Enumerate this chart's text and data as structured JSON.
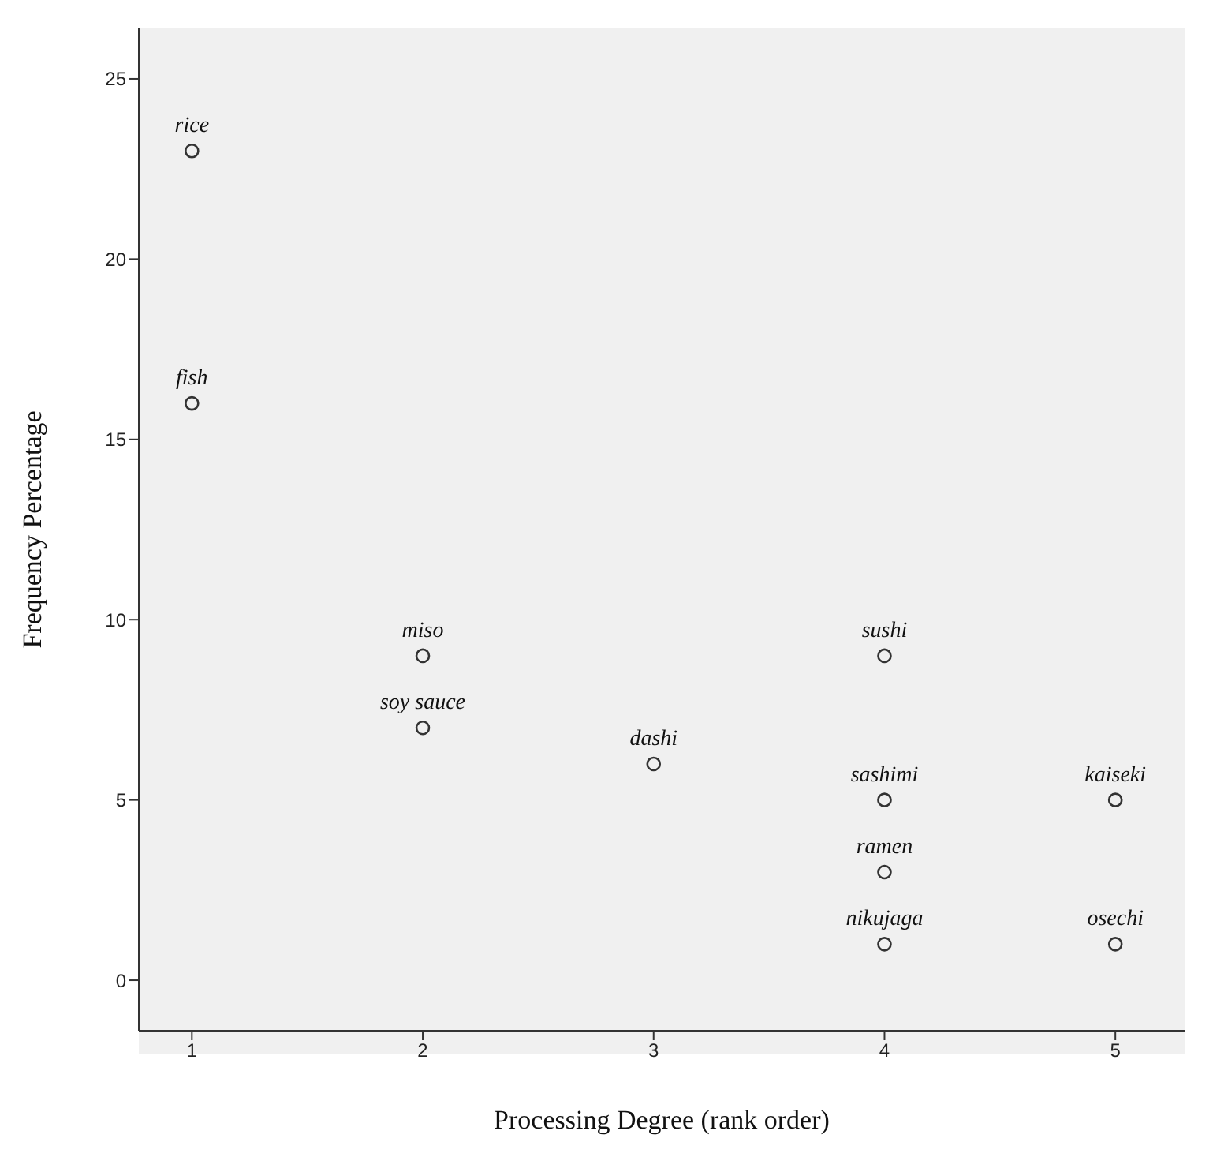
{
  "chart_data": {
    "type": "scatter",
    "xlabel": "Processing  Degree (rank order)",
    "ylabel": "Frequency Percentage",
    "x": [
      1,
      1,
      2,
      2,
      3,
      4,
      4,
      4,
      4,
      5,
      5
    ],
    "series": [
      {
        "color": "#333333",
        "values": [
          23,
          16,
          9,
          7,
          6,
          9,
          5,
          3,
          1,
          5,
          1
        ]
      }
    ],
    "xlim": [
      0.77,
      5.3
    ],
    "xticks": [
      1,
      2,
      3,
      4,
      5
    ],
    "ylim": [
      -1.4,
      26.4
    ],
    "yticks": [
      0,
      5,
      10,
      15,
      20,
      25
    ],
    "grid": false,
    "legend": false,
    "marker": "circle",
    "annotations": [
      {
        "text": "rice",
        "x": 1,
        "y": 23
      },
      {
        "text": "fish",
        "x": 1,
        "y": 16
      },
      {
        "text": "miso",
        "x": 2,
        "y": 9
      },
      {
        "text": "soy sauce",
        "x": 2,
        "y": 7
      },
      {
        "text": "dashi",
        "x": 3,
        "y": 6
      },
      {
        "text": "sushi",
        "x": 4,
        "y": 9
      },
      {
        "text": "sashimi",
        "x": 4,
        "y": 5
      },
      {
        "text": "ramen",
        "x": 4,
        "y": 3
      },
      {
        "text": "nikujaga",
        "x": 4,
        "y": 1
      },
      {
        "text": "kaiseki",
        "x": 5,
        "y": 5
      },
      {
        "text": "osechi",
        "x": 5,
        "y": 1
      }
    ]
  }
}
